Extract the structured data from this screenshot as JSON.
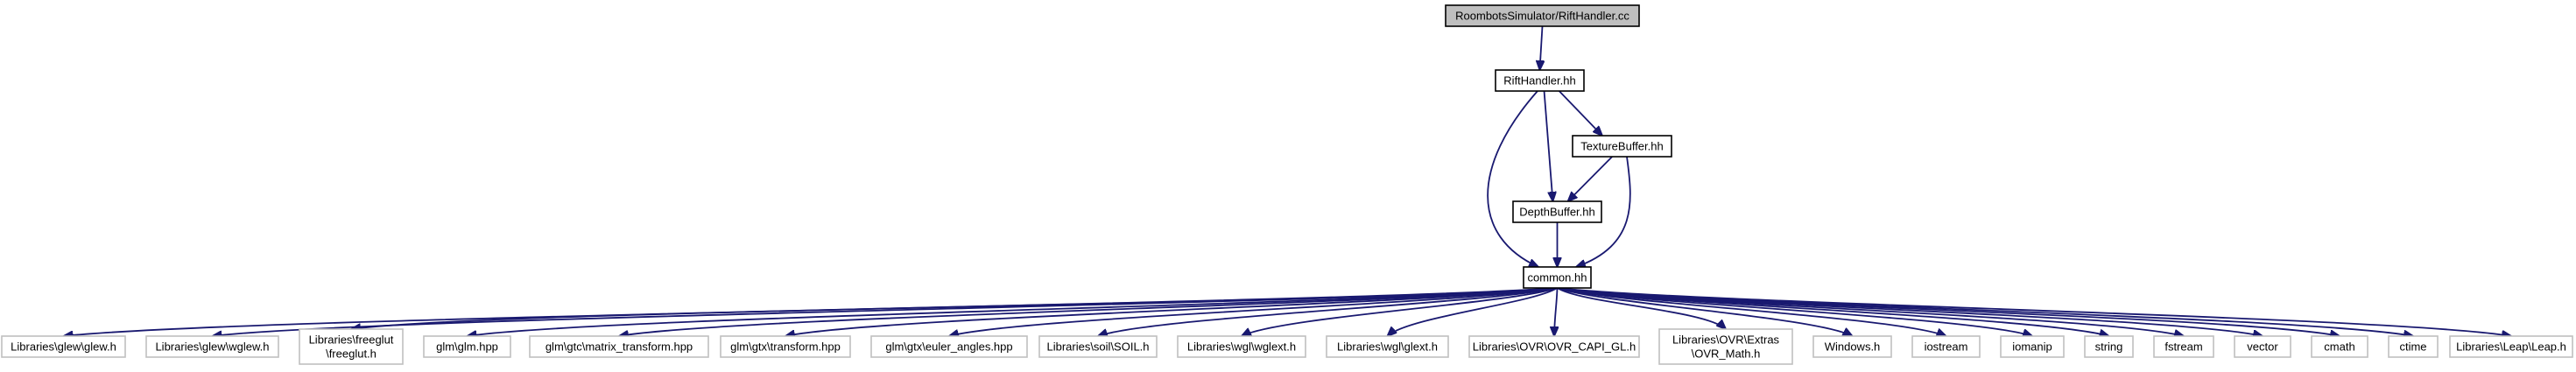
{
  "colors": {
    "edge": "#191970",
    "root_fill": "#bfbfbf",
    "internal_border": "#000000",
    "external_border": "#bfbfbf",
    "text": "#000000"
  },
  "nodes": [
    {
      "id": "root",
      "lines": [
        "RoombotsSimulator/RiftHandler.cc"
      ],
      "kind": "root"
    },
    {
      "id": "rift",
      "lines": [
        "RiftHandler.hh"
      ],
      "kind": "internal"
    },
    {
      "id": "texture",
      "lines": [
        "TextureBuffer.hh"
      ],
      "kind": "internal"
    },
    {
      "id": "depth",
      "lines": [
        "DepthBuffer.hh"
      ],
      "kind": "internal"
    },
    {
      "id": "common",
      "lines": [
        "common.hh"
      ],
      "kind": "internal"
    },
    {
      "id": "glew",
      "lines": [
        "Libraries\\glew\\glew.h"
      ],
      "kind": "external"
    },
    {
      "id": "wglew",
      "lines": [
        "Libraries\\glew\\wglew.h"
      ],
      "kind": "external"
    },
    {
      "id": "freeglut",
      "lines": [
        "Libraries\\freeglut",
        "\\freeglut.h"
      ],
      "kind": "external"
    },
    {
      "id": "glm",
      "lines": [
        "glm\\glm.hpp"
      ],
      "kind": "external"
    },
    {
      "id": "mt",
      "lines": [
        "glm\\gtc\\matrix_transform.hpp"
      ],
      "kind": "external"
    },
    {
      "id": "gtx",
      "lines": [
        "glm\\gtx\\transform.hpp"
      ],
      "kind": "external"
    },
    {
      "id": "euler",
      "lines": [
        "glm\\gtx\\euler_angles.hpp"
      ],
      "kind": "external"
    },
    {
      "id": "soil",
      "lines": [
        "Libraries\\soil\\SOIL.h"
      ],
      "kind": "external"
    },
    {
      "id": "wglext",
      "lines": [
        "Libraries\\wgl\\wglext.h"
      ],
      "kind": "external"
    },
    {
      "id": "glext",
      "lines": [
        "Libraries\\wgl\\glext.h"
      ],
      "kind": "external"
    },
    {
      "id": "ovrgl",
      "lines": [
        "Libraries\\OVR\\OVR_CAPI_GL.h"
      ],
      "kind": "external"
    },
    {
      "id": "ovrmath",
      "lines": [
        "Libraries\\OVR\\Extras",
        "\\OVR_Math.h"
      ],
      "kind": "external"
    },
    {
      "id": "windows",
      "lines": [
        "Windows.h"
      ],
      "kind": "external"
    },
    {
      "id": "iostream",
      "lines": [
        "iostream"
      ],
      "kind": "external"
    },
    {
      "id": "iomanip",
      "lines": [
        "iomanip"
      ],
      "kind": "external"
    },
    {
      "id": "string",
      "lines": [
        "string"
      ],
      "kind": "external"
    },
    {
      "id": "fstream",
      "lines": [
        "fstream"
      ],
      "kind": "external"
    },
    {
      "id": "vector",
      "lines": [
        "vector"
      ],
      "kind": "external"
    },
    {
      "id": "cmath",
      "lines": [
        "cmath"
      ],
      "kind": "external"
    },
    {
      "id": "ctime",
      "lines": [
        "ctime"
      ],
      "kind": "external"
    },
    {
      "id": "leap",
      "lines": [
        "Libraries\\Leap\\Leap.h"
      ],
      "kind": "external"
    }
  ],
  "edges": [
    {
      "from": "root",
      "to": "rift"
    },
    {
      "from": "rift",
      "to": "common"
    },
    {
      "from": "rift",
      "to": "texture"
    },
    {
      "from": "rift",
      "to": "depth"
    },
    {
      "from": "texture",
      "to": "depth"
    },
    {
      "from": "texture",
      "to": "common"
    },
    {
      "from": "depth",
      "to": "common"
    },
    {
      "from": "common",
      "to": "glew"
    },
    {
      "from": "common",
      "to": "wglew"
    },
    {
      "from": "common",
      "to": "freeglut"
    },
    {
      "from": "common",
      "to": "glm"
    },
    {
      "from": "common",
      "to": "mt"
    },
    {
      "from": "common",
      "to": "gtx"
    },
    {
      "from": "common",
      "to": "euler"
    },
    {
      "from": "common",
      "to": "soil"
    },
    {
      "from": "common",
      "to": "wglext"
    },
    {
      "from": "common",
      "to": "glext"
    },
    {
      "from": "common",
      "to": "ovrgl"
    },
    {
      "from": "common",
      "to": "ovrmath"
    },
    {
      "from": "common",
      "to": "windows"
    },
    {
      "from": "common",
      "to": "iostream"
    },
    {
      "from": "common",
      "to": "iomanip"
    },
    {
      "from": "common",
      "to": "string"
    },
    {
      "from": "common",
      "to": "fstream"
    },
    {
      "from": "common",
      "to": "vector"
    },
    {
      "from": "common",
      "to": "cmath"
    },
    {
      "from": "common",
      "to": "ctime"
    },
    {
      "from": "common",
      "to": "leap"
    }
  ]
}
